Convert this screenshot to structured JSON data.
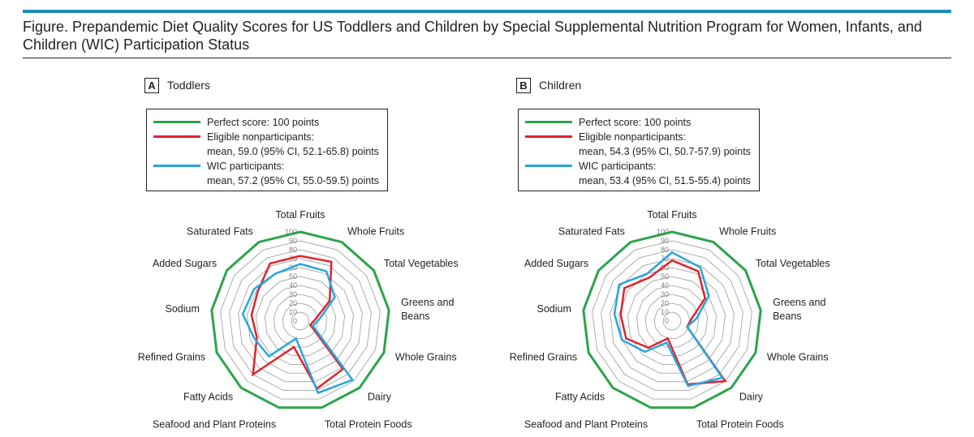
{
  "figure": {
    "title": "Figure. Prepandemic Diet Quality Scores for US Toddlers and Children by Special Supplemental Nutrition Program for Women, Infants, and Children (WIC) Participation Status"
  },
  "colors": {
    "perfect": "#2aa44a",
    "nonparticipants": "#e0232e",
    "participants": "#27a6de",
    "grid": "#9a9a9a",
    "accent_rule": "#1b8cb6"
  },
  "chart_data": [
    {
      "type": "radar",
      "panel_letter": "A",
      "title": "Toddlers",
      "axes": [
        "Total Fruits",
        "Whole Fruits",
        "Total Vegetables",
        "Greens and Beans",
        "Whole Grains",
        "Dairy",
        "Total Protein Foods",
        "Seafood and Plant Proteins",
        "Fatty Acids",
        "Refined Grains",
        "Sodium",
        "Added Sugars",
        "Saturated Fats"
      ],
      "ticks": [
        "0",
        "10",
        "20",
        "30",
        "40",
        "50",
        "60",
        "70",
        "80",
        "90",
        "100"
      ],
      "range": [
        0,
        100
      ],
      "legend": {
        "perfect": "Perfect score: 100 points",
        "nonparticipants_line1": "Eligible nonparticipants:",
        "nonparticipants_line2": "mean, 59.0 (95% CI, 52.1-65.8) points",
        "participants_line1": "WIC participants:",
        "participants_line2": "mean, 57.2 (95% CI, 55.0-59.5) points"
      },
      "series": [
        {
          "name": "Perfect score",
          "values": [
            100,
            100,
            100,
            100,
            100,
            100,
            100,
            100,
            100,
            100,
            100,
            100,
            100
          ]
        },
        {
          "name": "Eligible nonparticipants",
          "values": [
            73,
            75,
            40,
            17,
            12,
            72,
            78,
            30,
            80,
            52,
            55,
            58,
            73
          ]
        },
        {
          "name": "WIC participants",
          "values": [
            64,
            63,
            47,
            22,
            15,
            88,
            83,
            20,
            53,
            55,
            65,
            63,
            60
          ]
        }
      ]
    },
    {
      "type": "radar",
      "panel_letter": "B",
      "title": "Children",
      "axes": [
        "Total Fruits",
        "Whole Fruits",
        "Total Vegetables",
        "Greens and Beans",
        "Whole Grains",
        "Dairy",
        "Total Protein Foods",
        "Seafood and Plant Proteins",
        "Fatty Acids",
        "Refined Grains",
        "Sodium",
        "Added Sugars",
        "Saturated Fats"
      ],
      "ticks": [
        "0",
        "10",
        "20",
        "30",
        "40",
        "50",
        "60",
        "70",
        "80",
        "90",
        "100"
      ],
      "range": [
        0,
        100
      ],
      "legend": {
        "perfect": "Perfect score: 100 points",
        "nonparticipants_line1": "Eligible nonparticipants:",
        "nonparticipants_line2": "mean, 54.3 (95% CI, 50.7-57.9) points",
        "participants_line1": "WIC participants:",
        "participants_line2": "mean, 53.4 (95% CI, 51.5-55.4) points"
      },
      "series": [
        {
          "name": "Perfect score",
          "values": [
            100,
            100,
            100,
            100,
            100,
            100,
            100,
            100,
            100,
            100,
            100,
            100,
            100
          ]
        },
        {
          "name": "Eligible nonparticipants",
          "values": [
            68,
            63,
            45,
            22,
            18,
            90,
            73,
            20,
            40,
            55,
            58,
            65,
            55
          ]
        },
        {
          "name": "WIC participants",
          "values": [
            77,
            68,
            50,
            28,
            18,
            85,
            75,
            25,
            46,
            60,
            65,
            72,
            60
          ]
        }
      ]
    }
  ]
}
